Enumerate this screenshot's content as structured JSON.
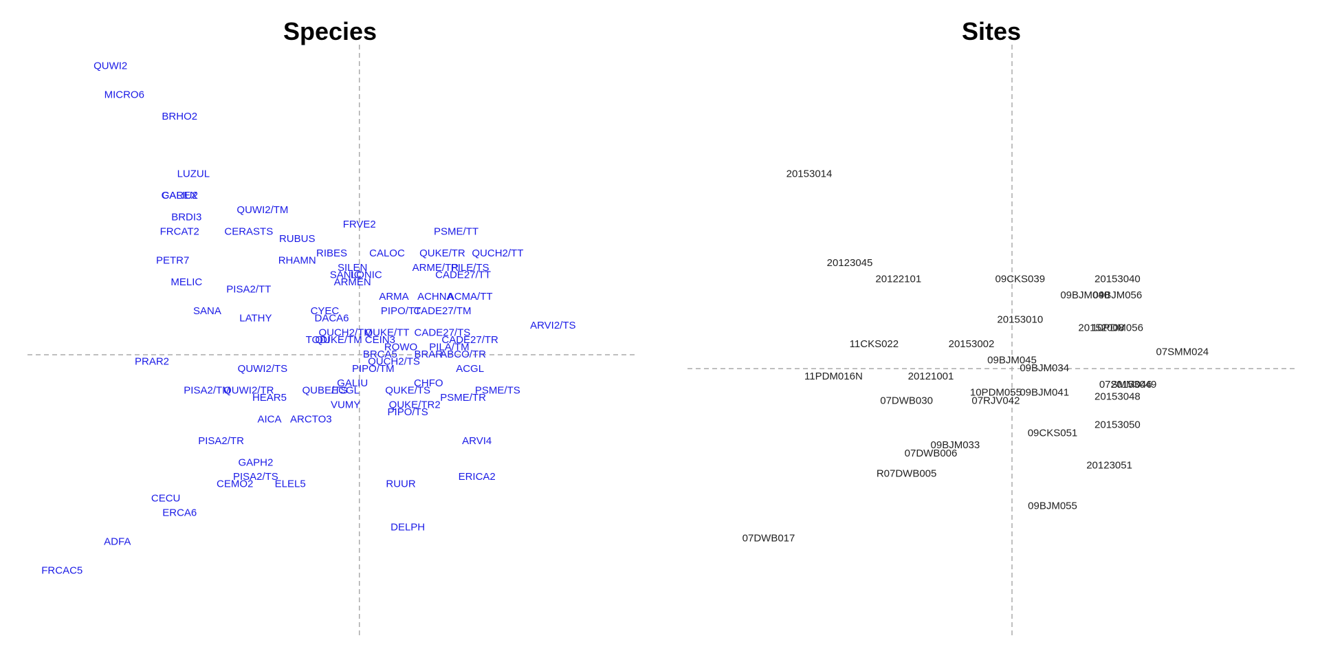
{
  "chart_data": [
    {
      "type": "scatter",
      "title": "Species",
      "xlabel": "",
      "ylabel": "",
      "xlim": [
        -4.8,
        4.0
      ],
      "ylim": [
        -3.9,
        4.3
      ],
      "grid": false,
      "reference_lines": {
        "x": 0,
        "y": 0
      },
      "point_color": "#1a1ae6",
      "labels": [
        "QUWI2",
        "CAREX",
        "MICRO6",
        "BRHO2",
        "LUZUL",
        "GALIU2",
        "BRDI3",
        "QUWI2/TM",
        "FRCAT2",
        "CERASTS",
        "RUBUS",
        "PETR7",
        "RIBES",
        "RHAMN",
        "FRVE2",
        "CALOC",
        "PSME/TT",
        "QUCH2/TT",
        "ARME/TR",
        "QUKE/TR",
        "MELIC",
        "SILEN",
        "SANIC",
        "LONIC",
        "ARMEN",
        "PILE/TS",
        "CADE27/TT",
        "PISA2/TT",
        "ARMA",
        "ACHNA",
        "ACMA/TT",
        "PIPO/TT",
        "SANA",
        "LATHY",
        "CYEC",
        "DACA6",
        "CADE27/TM",
        "ARVI2/TS",
        "QUCH2/TM",
        "QUKE/TT",
        "CADE27/TS",
        "TODI",
        "QUKE/TM",
        "CEIN3",
        "CADE27/TR",
        "ROWO",
        "PILA/TM",
        "BRAR",
        "PRAR2",
        "BRCA5",
        "ABCO/TR",
        "QUWI2/TS",
        "QUCH2/TS",
        "PIPO/TM",
        "ACGL",
        "GALIU",
        "PISA2/TM",
        "QUWI2/TR",
        "CHFO",
        "PSME/TS",
        "HEAR5",
        "QUBE/TS",
        "QUKE/TS",
        "ECGL",
        "VUMY",
        "QUKE/TR2",
        "PSME/TR",
        "PIPO/TS",
        "AICA",
        "ARCTO3",
        "PISA2/TR",
        "ARVI4",
        "GAPH2",
        "PISA2/TS",
        "CEMO2",
        "ELEL5",
        "RUUR",
        "ERICA2",
        "CECU",
        "ERCA6",
        "DELPH",
        "ADFA",
        "FRCAC5"
      ],
      "x": [
        -3.6,
        -2.6,
        -3.4,
        -2.6,
        -2.4,
        -2.6,
        -2.5,
        -1.4,
        -2.6,
        -1.6,
        -0.9,
        -2.7,
        -0.4,
        -0.9,
        0.0,
        0.4,
        1.4,
        2.0,
        1.1,
        1.2,
        -2.5,
        -0.1,
        -0.2,
        0.1,
        -0.1,
        1.6,
        1.5,
        -1.6,
        0.5,
        1.1,
        1.6,
        0.6,
        -2.2,
        -1.5,
        -0.5,
        -0.4,
        1.2,
        2.8,
        -0.2,
        0.4,
        1.2,
        -0.6,
        -0.3,
        0.3,
        1.6,
        0.6,
        1.3,
        1.0,
        -3.0,
        0.3,
        1.5,
        -1.4,
        0.5,
        0.2,
        1.6,
        -0.1,
        -2.2,
        -1.6,
        1.0,
        2.0,
        -1.3,
        -0.5,
        0.7,
        -0.2,
        -0.2,
        0.8,
        1.5,
        0.7,
        -1.3,
        -0.7,
        -2.0,
        1.7,
        -1.5,
        -1.5,
        -1.8,
        -1.0,
        0.6,
        1.7,
        -2.8,
        -2.6,
        0.7,
        -3.5,
        -4.3
      ],
      "y": [
        4.0,
        2.2,
        3.6,
        3.3,
        2.5,
        2.2,
        1.9,
        2.0,
        1.7,
        1.7,
        1.6,
        1.3,
        1.4,
        1.3,
        1.8,
        1.4,
        1.7,
        1.4,
        1.2,
        1.4,
        1.0,
        1.2,
        1.1,
        1.1,
        1.0,
        1.2,
        1.1,
        0.9,
        0.8,
        0.8,
        0.8,
        0.6,
        0.6,
        0.5,
        0.6,
        0.5,
        0.6,
        0.4,
        0.3,
        0.3,
        0.3,
        0.2,
        0.2,
        0.2,
        0.2,
        0.1,
        0.1,
        0.0,
        -0.1,
        0.0,
        0.0,
        -0.2,
        -0.1,
        -0.2,
        -0.2,
        -0.4,
        -0.5,
        -0.5,
        -0.4,
        -0.5,
        -0.6,
        -0.5,
        -0.5,
        -0.5,
        -0.7,
        -0.7,
        -0.6,
        -0.8,
        -0.9,
        -0.9,
        -1.2,
        -1.2,
        -1.5,
        -1.7,
        -1.8,
        -1.8,
        -1.8,
        -1.7,
        -2.0,
        -2.2,
        -2.4,
        -2.6,
        -3.0
      ]
    },
    {
      "type": "scatter",
      "title": "Sites",
      "xlabel": "",
      "ylabel": "",
      "xlim": [
        -4.0,
        3.5
      ],
      "ylim": [
        -3.3,
        4.0
      ],
      "grid": false,
      "reference_lines": {
        "x": 0,
        "y": 0
      },
      "point_color": "#222222",
      "labels": [
        "20153014",
        "20123045",
        "20122101",
        "09CKS039",
        "20153040",
        "09BJM040",
        "09BJM056",
        "20153010",
        "20152008",
        "10PDM056",
        "11CKS022",
        "20153002",
        "07SMM024",
        "09BJM045",
        "09BJM034",
        "11PDM016N",
        "20121001",
        "07SMM046",
        "20153049",
        "10PDM055",
        "09BJM041",
        "20153048",
        "07DWB030",
        "07RJV042",
        "20153050",
        "09CKS051",
        "09BJM033",
        "07DWB006",
        "20123051",
        "R07DWB005",
        "09BJM055",
        "07DWB017"
      ],
      "x": [
        -2.5,
        -2.0,
        -1.4,
        0.1,
        1.3,
        0.9,
        1.3,
        0.1,
        1.1,
        1.3,
        -1.7,
        -0.5,
        2.1,
        0.0,
        0.4,
        -2.2,
        -1.0,
        1.4,
        1.5,
        -0.2,
        0.4,
        1.3,
        -1.3,
        -0.2,
        1.3,
        0.5,
        -0.7,
        -1.0,
        1.2,
        -1.3,
        0.5,
        -3.0
      ],
      "y": [
        2.4,
        1.3,
        1.1,
        1.1,
        1.1,
        0.9,
        0.9,
        0.6,
        0.5,
        0.5,
        0.3,
        0.3,
        0.2,
        0.1,
        0.0,
        -0.1,
        -0.1,
        -0.2,
        -0.2,
        -0.3,
        -0.3,
        -0.35,
        -0.4,
        -0.4,
        -0.7,
        -0.8,
        -0.95,
        -1.05,
        -1.2,
        -1.3,
        -1.7,
        -2.1
      ]
    }
  ]
}
